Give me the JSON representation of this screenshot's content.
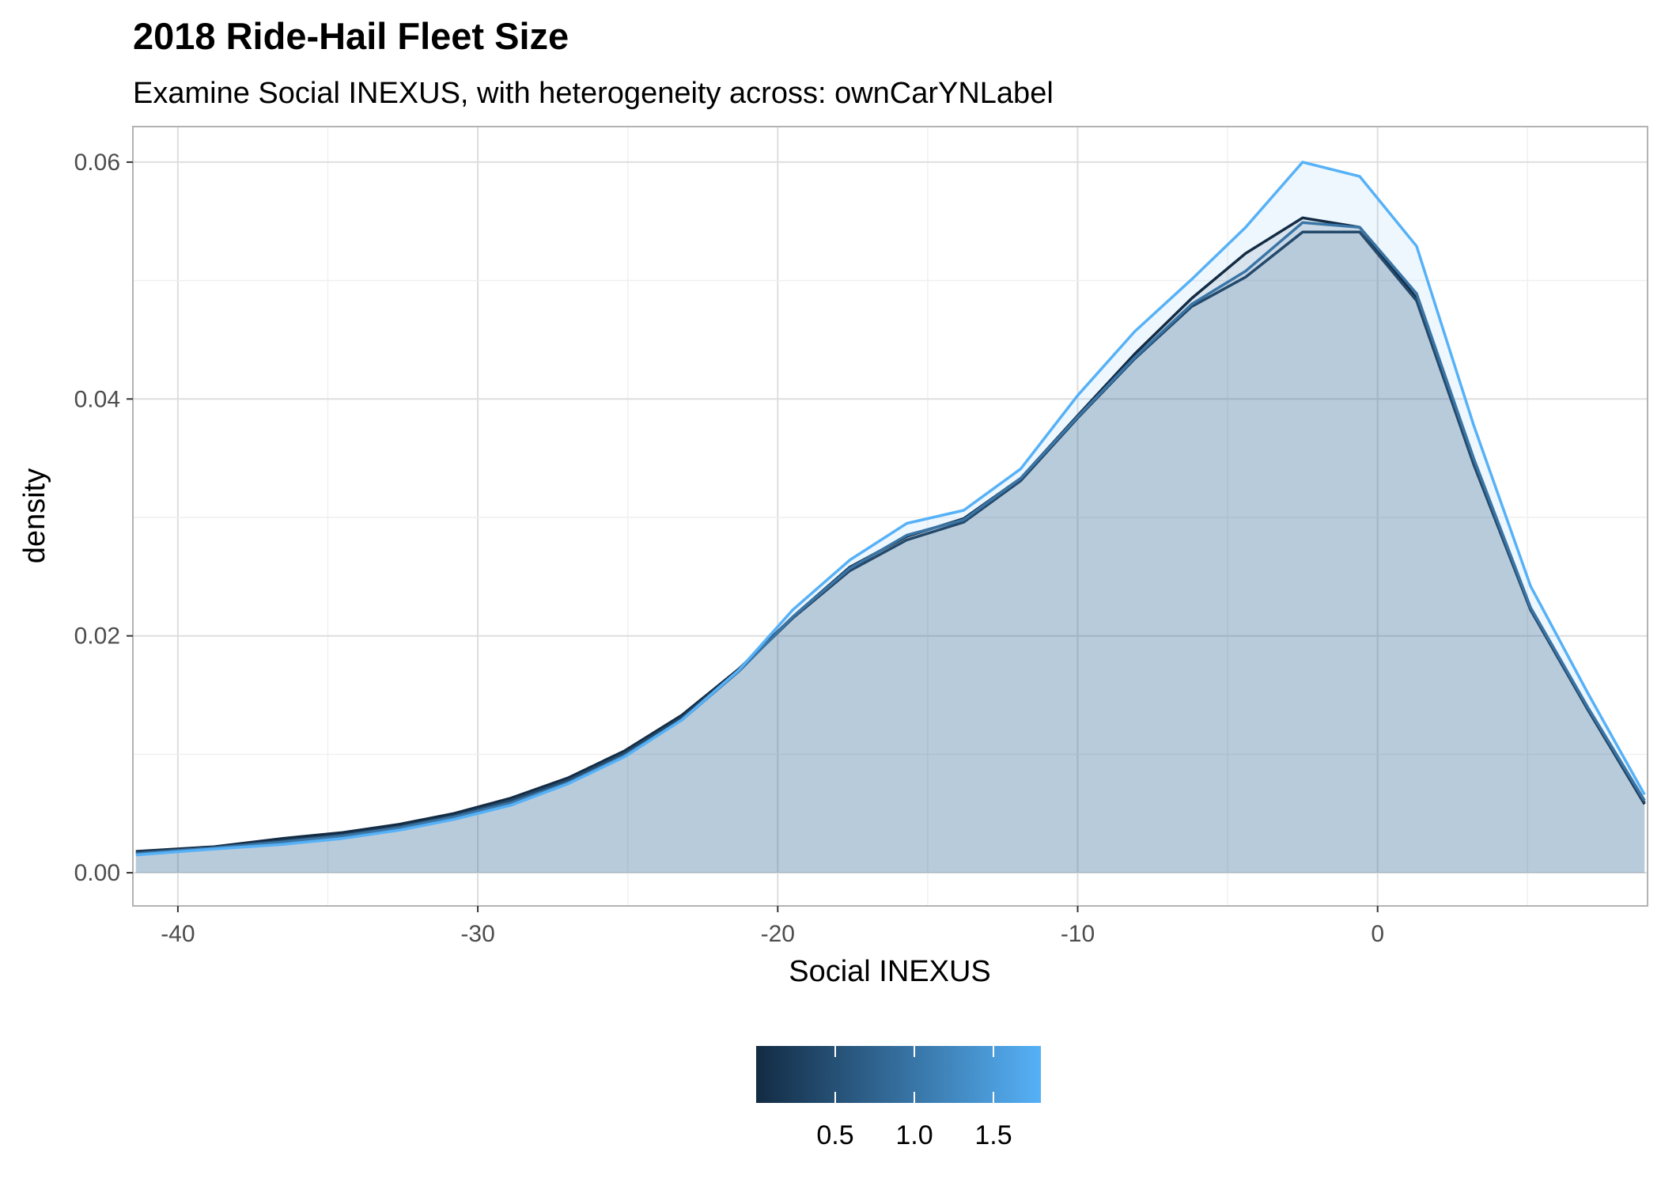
{
  "chart_data": {
    "type": "area",
    "title": "2018 Ride-Hail Fleet Size",
    "subtitle": "Examine Social INEXUS, with heterogeneity across: ownCarYNLabel",
    "xlabel": "Social INEXUS",
    "ylabel": "density",
    "xlim": [
      -41.5,
      9.0
    ],
    "ylim": [
      -0.0028,
      0.063
    ],
    "x_ticks": [
      -40,
      -30,
      -20,
      -10,
      0
    ],
    "x_tick_labels": [
      "-40",
      "-30",
      "-20",
      "-10",
      "0"
    ],
    "y_ticks": [
      0.0,
      0.02,
      0.04,
      0.06
    ],
    "y_tick_labels": [
      "0.00",
      "0.02",
      "0.04",
      "0.06"
    ],
    "grid": true,
    "legend": {
      "position": "bottom",
      "type": "colorbar",
      "low_color": "#132b43",
      "high_color": "#56b1f7",
      "range": [
        0.0,
        1.8
      ],
      "ticks": [
        0.5,
        1.0,
        1.5
      ],
      "tick_labels": [
        "0.5",
        "1.0",
        "1.5"
      ]
    },
    "x": [
      -41.4,
      -38.8,
      -36.5,
      -34.5,
      -32.6,
      -30.8,
      -28.9,
      -27.0,
      -25.1,
      -23.2,
      -21.3,
      -19.5,
      -17.6,
      -15.7,
      -13.8,
      -11.9,
      -10.0,
      -8.1,
      -6.2,
      -4.4,
      -2.5,
      -0.6,
      1.3,
      3.2,
      5.1,
      7.0,
      8.9
    ],
    "series": [
      {
        "value": 0.0,
        "color": "#132b43",
        "values": [
          0.0018,
          0.0022,
          0.0029,
          0.0034,
          0.0041,
          0.005,
          0.0063,
          0.008,
          0.0103,
          0.0133,
          0.0172,
          0.0216,
          0.0258,
          0.0284,
          0.0299,
          0.0333,
          0.0386,
          0.0438,
          0.0485,
          0.0523,
          0.0553,
          0.0545,
          0.0485,
          0.0345,
          0.0222,
          0.0138,
          0.0058
        ]
      },
      {
        "value": 0.6,
        "color": "#24496a",
        "values": [
          0.0017,
          0.0021,
          0.0027,
          0.0032,
          0.0039,
          0.0048,
          0.0061,
          0.0078,
          0.0101,
          0.0131,
          0.0171,
          0.0215,
          0.0255,
          0.0281,
          0.0296,
          0.0331,
          0.0384,
          0.0434,
          0.0478,
          0.0503,
          0.0541,
          0.0541,
          0.0483,
          0.0345,
          0.0222,
          0.0138,
          0.0059
        ]
      },
      {
        "value": 1.2,
        "color": "#3a75a6",
        "values": [
          0.0016,
          0.0021,
          0.0026,
          0.0031,
          0.0038,
          0.0047,
          0.0059,
          0.0076,
          0.0099,
          0.0129,
          0.017,
          0.0216,
          0.0257,
          0.0285,
          0.0298,
          0.0333,
          0.0385,
          0.0435,
          0.048,
          0.0508,
          0.0549,
          0.0545,
          0.0489,
          0.035,
          0.0224,
          0.014,
          0.0061
        ]
      },
      {
        "value": 1.8,
        "color": "#56b1f7",
        "values": [
          0.0015,
          0.002,
          0.0024,
          0.0029,
          0.0036,
          0.0045,
          0.0057,
          0.0075,
          0.0098,
          0.0129,
          0.0171,
          0.0222,
          0.0264,
          0.0295,
          0.0306,
          0.0341,
          0.0403,
          0.0457,
          0.0501,
          0.0545,
          0.06,
          0.0588,
          0.0529,
          0.0378,
          0.0242,
          0.0152,
          0.0066
        ]
      }
    ]
  }
}
